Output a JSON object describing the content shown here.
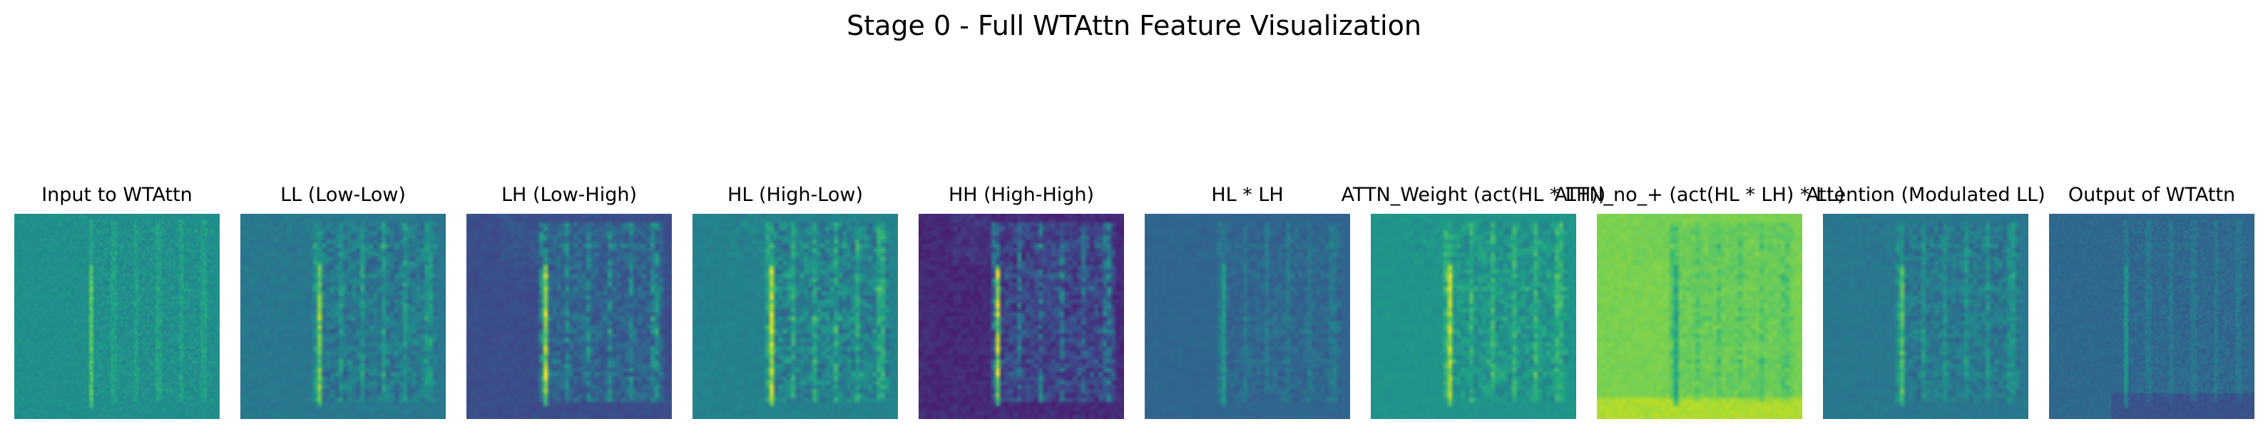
{
  "figure": {
    "title": "Stage 0 - Full WTAttn Feature Visualization",
    "colormap": "viridis",
    "panels": [
      {
        "title": "Input to WTAttn",
        "kind": "input",
        "base": 0.5
      },
      {
        "title": "LL (Low-Low)",
        "kind": "ll",
        "base": 0.4
      },
      {
        "title": "LH (Low-High)",
        "kind": "lh",
        "base": 0.24
      },
      {
        "title": "HL (High-Low)",
        "kind": "hl",
        "base": 0.44
      },
      {
        "title": "HH (High-High)",
        "kind": "hh",
        "base": 0.12
      },
      {
        "title": "HL * LH",
        "kind": "prod",
        "base": 0.33
      },
      {
        "title": "ATTN_Weight (act(HL * LH))",
        "kind": "attn",
        "base": 0.52
      },
      {
        "title": "ATTN_no_+ (act(HL * LH) * LL)",
        "kind": "attnno",
        "base": 0.8
      },
      {
        "title": "Attention (Modulated LL)",
        "kind": "modll",
        "base": 0.4
      },
      {
        "title": "Output of WTAttn",
        "kind": "output",
        "base": 0.34
      }
    ]
  }
}
